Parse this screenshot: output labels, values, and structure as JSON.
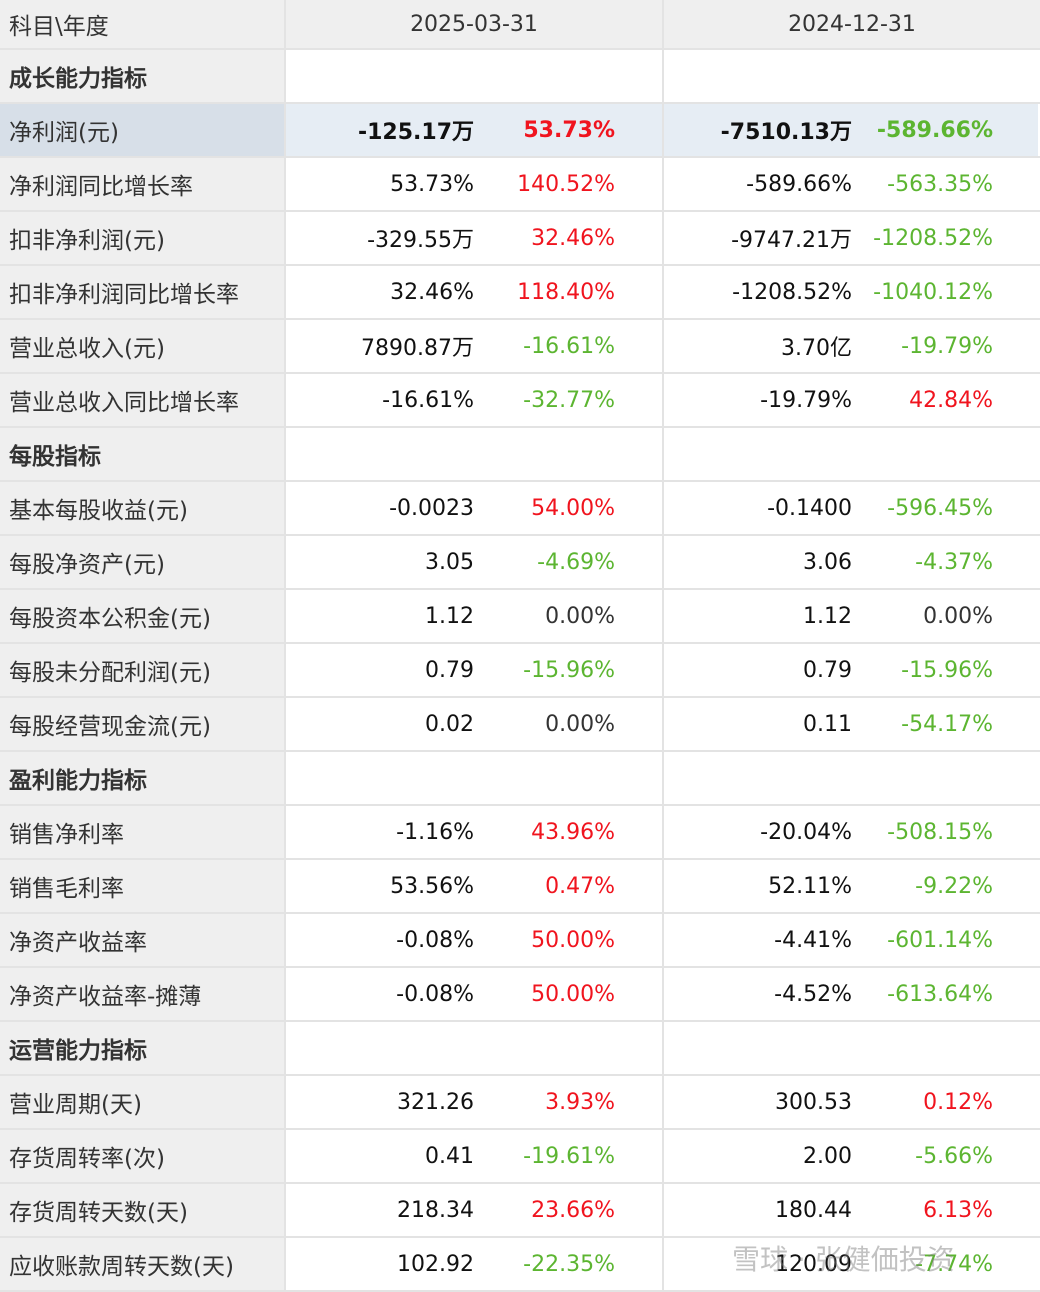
{
  "header": {
    "col0": "科目\\年度",
    "periods": [
      "2025-03-31",
      "2024-12-31"
    ]
  },
  "rows": [
    {
      "type": "section",
      "label": "成长能力指标"
    },
    {
      "type": "data",
      "highlight": true,
      "label": "净利润(元)",
      "cells": [
        {
          "value": "-125.17万",
          "change": "53.73%",
          "trend": "up"
        },
        {
          "value": "-7510.13万",
          "change": "-589.66%",
          "trend": "down"
        }
      ]
    },
    {
      "type": "data",
      "label": "净利润同比增长率",
      "cells": [
        {
          "value": "53.73%",
          "change": "140.52%",
          "trend": "up"
        },
        {
          "value": "-589.66%",
          "change": "-563.35%",
          "trend": "down"
        }
      ]
    },
    {
      "type": "data",
      "label": "扣非净利润(元)",
      "cells": [
        {
          "value": "-329.55万",
          "change": "32.46%",
          "trend": "up"
        },
        {
          "value": "-9747.21万",
          "change": "-1208.52%",
          "trend": "down"
        }
      ]
    },
    {
      "type": "data",
      "label": "扣非净利润同比增长率",
      "cells": [
        {
          "value": "32.46%",
          "change": "118.40%",
          "trend": "up"
        },
        {
          "value": "-1208.52%",
          "change": "-1040.12%",
          "trend": "down"
        }
      ]
    },
    {
      "type": "data",
      "label": "营业总收入(元)",
      "cells": [
        {
          "value": "7890.87万",
          "change": "-16.61%",
          "trend": "down"
        },
        {
          "value": "3.70亿",
          "change": "-19.79%",
          "trend": "down"
        }
      ]
    },
    {
      "type": "data",
      "label": "营业总收入同比增长率",
      "cells": [
        {
          "value": "-16.61%",
          "change": "-32.77%",
          "trend": "down"
        },
        {
          "value": "-19.79%",
          "change": "42.84%",
          "trend": "up"
        }
      ]
    },
    {
      "type": "section",
      "label": "每股指标"
    },
    {
      "type": "data",
      "label": "基本每股收益(元)",
      "cells": [
        {
          "value": "-0.0023",
          "change": "54.00%",
          "trend": "up"
        },
        {
          "value": "-0.1400",
          "change": "-596.45%",
          "trend": "down"
        }
      ]
    },
    {
      "type": "data",
      "label": "每股净资产(元)",
      "cells": [
        {
          "value": "3.05",
          "change": "-4.69%",
          "trend": "down"
        },
        {
          "value": "3.06",
          "change": "-4.37%",
          "trend": "down"
        }
      ]
    },
    {
      "type": "data",
      "label": "每股资本公积金(元)",
      "cells": [
        {
          "value": "1.12",
          "change": "0.00%",
          "trend": "flat"
        },
        {
          "value": "1.12",
          "change": "0.00%",
          "trend": "flat"
        }
      ]
    },
    {
      "type": "data",
      "label": "每股未分配利润(元)",
      "cells": [
        {
          "value": "0.79",
          "change": "-15.96%",
          "trend": "down"
        },
        {
          "value": "0.79",
          "change": "-15.96%",
          "trend": "down"
        }
      ]
    },
    {
      "type": "data",
      "label": "每股经营现金流(元)",
      "cells": [
        {
          "value": "0.02",
          "change": "0.00%",
          "trend": "flat"
        },
        {
          "value": "0.11",
          "change": "-54.17%",
          "trend": "down"
        }
      ]
    },
    {
      "type": "section",
      "label": "盈利能力指标"
    },
    {
      "type": "data",
      "label": "销售净利率",
      "cells": [
        {
          "value": "-1.16%",
          "change": "43.96%",
          "trend": "up"
        },
        {
          "value": "-20.04%",
          "change": "-508.15%",
          "trend": "down"
        }
      ]
    },
    {
      "type": "data",
      "label": "销售毛利率",
      "cells": [
        {
          "value": "53.56%",
          "change": "0.47%",
          "trend": "up"
        },
        {
          "value": "52.11%",
          "change": "-9.22%",
          "trend": "down"
        }
      ]
    },
    {
      "type": "data",
      "label": "净资产收益率",
      "cells": [
        {
          "value": "-0.08%",
          "change": "50.00%",
          "trend": "up"
        },
        {
          "value": "-4.41%",
          "change": "-601.14%",
          "trend": "down"
        }
      ]
    },
    {
      "type": "data",
      "label": "净资产收益率-摊薄",
      "cells": [
        {
          "value": "-0.08%",
          "change": "50.00%",
          "trend": "up"
        },
        {
          "value": "-4.52%",
          "change": "-613.64%",
          "trend": "down"
        }
      ]
    },
    {
      "type": "section",
      "label": "运营能力指标"
    },
    {
      "type": "data",
      "label": "营业周期(天)",
      "cells": [
        {
          "value": "321.26",
          "change": "3.93%",
          "trend": "up"
        },
        {
          "value": "300.53",
          "change": "0.12%",
          "trend": "up"
        }
      ]
    },
    {
      "type": "data",
      "label": "存货周转率(次)",
      "cells": [
        {
          "value": "0.41",
          "change": "-19.61%",
          "trend": "down"
        },
        {
          "value": "2.00",
          "change": "-5.66%",
          "trend": "down"
        }
      ]
    },
    {
      "type": "data",
      "label": "存货周转天数(天)",
      "cells": [
        {
          "value": "218.34",
          "change": "23.66%",
          "trend": "up"
        },
        {
          "value": "180.44",
          "change": "6.13%",
          "trend": "up"
        }
      ]
    },
    {
      "type": "data",
      "label": "应收账款周转天数(天)",
      "cells": [
        {
          "value": "102.92",
          "change": "-22.35%",
          "trend": "down"
        },
        {
          "value": "120.09",
          "change": "-7.74%",
          "trend": "down"
        }
      ]
    }
  ],
  "watermark": "雪球 · 张健価投资"
}
